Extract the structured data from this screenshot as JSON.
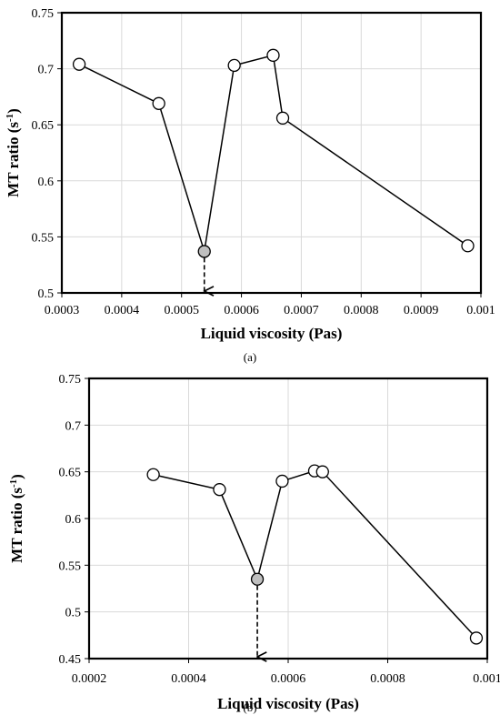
{
  "chart_data": [
    {
      "type": "scatter",
      "panel_label": "(a)",
      "xlabel": "Liquid viscosity (Pas)",
      "ylabel_main": "MT ratio (s",
      "ylabel_sup": "-1",
      "ylabel_close": ")",
      "xlim": [
        0.0003,
        0.001
      ],
      "ylim": [
        0.5,
        0.75
      ],
      "x_ticks": [
        0.0003,
        0.0004,
        0.0005,
        0.0006,
        0.0007,
        0.0008,
        0.0009,
        0.001
      ],
      "x_tick_labels": [
        "0.0003",
        "0.0004",
        "0.0005",
        "0.0006",
        "0.0007",
        "0.0008",
        "0.0009",
        "0.001"
      ],
      "y_ticks": [
        0.5,
        0.55,
        0.6,
        0.65,
        0.7,
        0.75
      ],
      "y_tick_labels": [
        "0.5",
        "0.55",
        "0.6",
        "0.65",
        "0.7",
        "0.75"
      ],
      "grid": true,
      "series": [
        {
          "points": [
            {
              "x": 0.000329,
              "y": 0.704
            },
            {
              "x": 0.000462,
              "y": 0.669
            },
            {
              "x": 0.000538,
              "y": 0.537,
              "highlight": true
            },
            {
              "x": 0.000588,
              "y": 0.703
            },
            {
              "x": 0.000653,
              "y": 0.712
            },
            {
              "x": 0.000669,
              "y": 0.656
            },
            {
              "x": 0.000978,
              "y": 0.542
            }
          ]
        }
      ],
      "arrow": {
        "x": 0.000538,
        "from_y": 0.537,
        "to_y": 0.5
      }
    },
    {
      "type": "scatter",
      "panel_label": "(b)",
      "xlabel": "Liquid viscosity (Pas)",
      "ylabel_main": "MT ratio (s",
      "ylabel_sup": "-1",
      "ylabel_close": ")",
      "xlim": [
        0.0002,
        0.001
      ],
      "ylim": [
        0.45,
        0.75
      ],
      "x_ticks": [
        0.0002,
        0.0004,
        0.0006,
        0.0008,
        0.001
      ],
      "x_tick_labels": [
        "0.0002",
        "0.0004",
        "0.0006",
        "0.0008",
        "0.001"
      ],
      "y_ticks": [
        0.45,
        0.5,
        0.55,
        0.6,
        0.65,
        0.7,
        0.75
      ],
      "y_tick_labels": [
        "0.45",
        "0.5",
        "0.55",
        "0.6",
        "0.65",
        "0.7",
        "0.75"
      ],
      "grid": true,
      "series": [
        {
          "points": [
            {
              "x": 0.000329,
              "y": 0.647
            },
            {
              "x": 0.000462,
              "y": 0.631
            },
            {
              "x": 0.000538,
              "y": 0.535,
              "highlight": true
            },
            {
              "x": 0.000588,
              "y": 0.64
            },
            {
              "x": 0.000653,
              "y": 0.651
            },
            {
              "x": 0.000669,
              "y": 0.65
            },
            {
              "x": 0.000978,
              "y": 0.472
            }
          ]
        }
      ],
      "arrow": {
        "x": 0.000538,
        "from_y": 0.535,
        "to_y": 0.45
      }
    }
  ],
  "colors": {
    "marker_fill": "#ffffff",
    "marker_highlight_fill": "#bfbfbf",
    "line": "#000000",
    "grid": "#d9d9d9"
  }
}
